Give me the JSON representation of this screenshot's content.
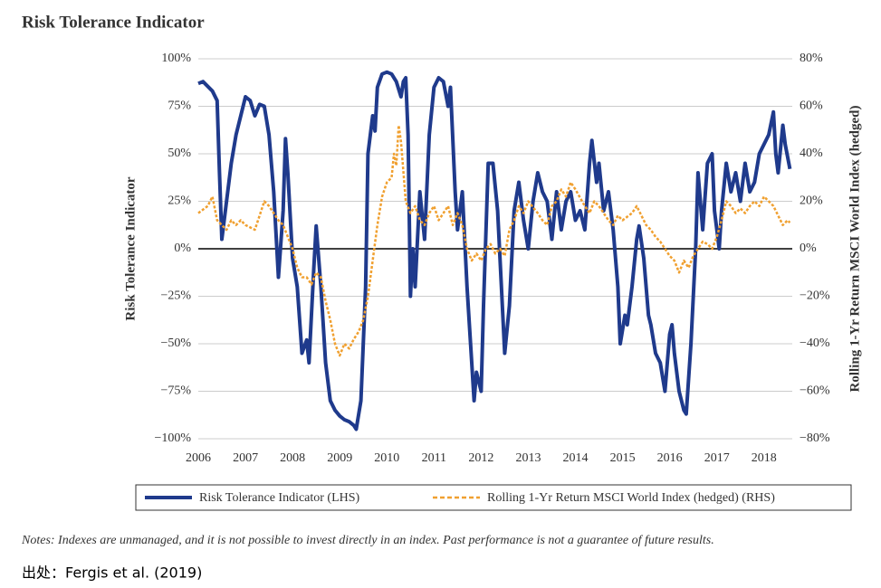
{
  "chart_data": {
    "type": "line",
    "title": "Risk Tolerance Indicator",
    "ylabel": "Risk Tolerance Indicator",
    "y2label": "Rolling 1-Yr Return MSCI World Index (hedged)",
    "notes": "Notes: Indexes are unmanaged, and it is not possible to invest directly in an index. Past performance is not a guarantee of future results.",
    "source": "出处：Fergis et al. (2019)",
    "xlim": [
      2006,
      2018.6
    ],
    "xticks": [
      2006,
      2007,
      2008,
      2009,
      2010,
      2011,
      2012,
      2013,
      2014,
      2015,
      2016,
      2017,
      2018
    ],
    "ylim": [
      -100,
      100
    ],
    "yticks": [
      {
        "value": -100,
        "label": "−100%"
      },
      {
        "value": -75,
        "label": "−75%"
      },
      {
        "value": -50,
        "label": "−50%"
      },
      {
        "value": -25,
        "label": "−25%"
      },
      {
        "value": 0,
        "label": "0%"
      },
      {
        "value": 25,
        "label": "25%"
      },
      {
        "value": 50,
        "label": "50%"
      },
      {
        "value": 75,
        "label": "75%"
      },
      {
        "value": 100,
        "label": "100%"
      }
    ],
    "y2lim": [
      -80,
      80
    ],
    "y2ticks": [
      {
        "value": -80,
        "label": "−80%"
      },
      {
        "value": -60,
        "label": "−60%"
      },
      {
        "value": -40,
        "label": "−40%"
      },
      {
        "value": -20,
        "label": "−20%"
      },
      {
        "value": 0,
        "label": "0%"
      },
      {
        "value": 20,
        "label": "20%"
      },
      {
        "value": 40,
        "label": "40%"
      },
      {
        "value": 60,
        "label": "60%"
      },
      {
        "value": 80,
        "label": "80%"
      }
    ],
    "grid": true,
    "series": [
      {
        "name": "Risk Tolerance Indicator (LHS)",
        "color": "#1f3a8c",
        "axis": "y",
        "x": [
          2006.0,
          2006.1,
          2006.3,
          2006.4,
          2006.45,
          2006.5,
          2006.6,
          2006.7,
          2006.8,
          2006.9,
          2007.0,
          2007.1,
          2007.2,
          2007.3,
          2007.4,
          2007.5,
          2007.6,
          2007.7,
          2007.8,
          2007.85,
          2007.9,
          2008.0,
          2008.1,
          2008.2,
          2008.3,
          2008.35,
          2008.45,
          2008.5,
          2008.6,
          2008.7,
          2008.8,
          2008.9,
          2009.0,
          2009.1,
          2009.2,
          2009.3,
          2009.35,
          2009.45,
          2009.55,
          2009.6,
          2009.7,
          2009.75,
          2009.8,
          2009.9,
          2010.0,
          2010.1,
          2010.2,
          2010.3,
          2010.35,
          2010.4,
          2010.45,
          2010.5,
          2010.55,
          2010.6,
          2010.7,
          2010.8,
          2010.9,
          2011.0,
          2011.1,
          2011.2,
          2011.3,
          2011.35,
          2011.45,
          2011.5,
          2011.6,
          2011.7,
          2011.8,
          2011.85,
          2011.9,
          2012.0,
          2012.05,
          2012.15,
          2012.25,
          2012.35,
          2012.45,
          2012.5,
          2012.6,
          2012.7,
          2012.8,
          2012.9,
          2013.0,
          2013.1,
          2013.2,
          2013.3,
          2013.4,
          2013.5,
          2013.6,
          2013.7,
          2013.8,
          2013.9,
          2014.0,
          2014.1,
          2014.2,
          2014.3,
          2014.35,
          2014.45,
          2014.5,
          2014.6,
          2014.7,
          2014.8,
          2014.9,
          2014.95,
          2015.05,
          2015.1,
          2015.2,
          2015.3,
          2015.35,
          2015.45,
          2015.55,
          2015.6,
          2015.7,
          2015.8,
          2015.9,
          2016.0,
          2016.05,
          2016.1,
          2016.2,
          2016.3,
          2016.35,
          2016.45,
          2016.55,
          2016.6,
          2016.7,
          2016.8,
          2016.9,
          2016.95,
          2017.05,
          2017.1,
          2017.2,
          2017.3,
          2017.4,
          2017.5,
          2017.6,
          2017.7,
          2017.8,
          2017.9,
          2018.0,
          2018.1,
          2018.2,
          2018.25,
          2018.3,
          2018.4,
          2018.45,
          2018.55
        ],
        "values": [
          87,
          88,
          83,
          78,
          40,
          5,
          25,
          45,
          60,
          70,
          80,
          78,
          70,
          76,
          75,
          60,
          30,
          -15,
          20,
          58,
          40,
          -5,
          -20,
          -55,
          -48,
          -60,
          -10,
          12,
          -20,
          -60,
          -80,
          -85,
          -88,
          -90,
          -91,
          -93,
          -95,
          -80,
          -20,
          50,
          70,
          62,
          85,
          92,
          93,
          92,
          88,
          80,
          88,
          90,
          60,
          -25,
          0,
          -20,
          30,
          5,
          60,
          85,
          90,
          88,
          75,
          85,
          30,
          10,
          30,
          -20,
          -60,
          -80,
          -65,
          -75,
          -30,
          45,
          45,
          20,
          -30,
          -55,
          -30,
          20,
          35,
          15,
          0,
          25,
          40,
          30,
          25,
          5,
          30,
          10,
          25,
          30,
          15,
          20,
          10,
          45,
          57,
          35,
          45,
          20,
          30,
          10,
          -20,
          -50,
          -35,
          -40,
          -20,
          5,
          12,
          -5,
          -35,
          -40,
          -55,
          -60,
          -75,
          -45,
          -40,
          -55,
          -75,
          -85,
          -87,
          -50,
          0,
          40,
          10,
          45,
          50,
          20,
          0,
          20,
          45,
          30,
          40,
          25,
          45,
          30,
          35,
          50,
          55,
          60,
          72,
          50,
          40,
          65,
          55,
          42
        ]
      },
      {
        "name": "Rolling 1-Yr Return MSCI World Index (hedged) (RHS)",
        "color": "#f0a030",
        "axis": "y2",
        "x": [
          2006.0,
          2006.2,
          2006.3,
          2006.4,
          2006.5,
          2006.6,
          2006.7,
          2006.8,
          2006.9,
          2007.0,
          2007.2,
          2007.3,
          2007.4,
          2007.5,
          2007.6,
          2007.7,
          2007.8,
          2007.9,
          2008.0,
          2008.1,
          2008.2,
          2008.3,
          2008.4,
          2008.5,
          2008.6,
          2008.7,
          2008.8,
          2008.9,
          2009.0,
          2009.1,
          2009.2,
          2009.3,
          2009.4,
          2009.5,
          2009.6,
          2009.7,
          2009.8,
          2009.9,
          2010.0,
          2010.1,
          2010.15,
          2010.2,
          2010.25,
          2010.3,
          2010.4,
          2010.5,
          2010.6,
          2010.7,
          2010.8,
          2010.9,
          2011.0,
          2011.1,
          2011.2,
          2011.3,
          2011.4,
          2011.5,
          2011.6,
          2011.7,
          2011.8,
          2011.9,
          2012.0,
          2012.1,
          2012.2,
          2012.3,
          2012.4,
          2012.5,
          2012.6,
          2012.7,
          2012.8,
          2012.9,
          2013.0,
          2013.2,
          2013.3,
          2013.4,
          2013.5,
          2013.6,
          2013.7,
          2013.8,
          2013.9,
          2014.0,
          2014.2,
          2014.3,
          2014.4,
          2014.5,
          2014.6,
          2014.7,
          2014.8,
          2014.9,
          2015.0,
          2015.2,
          2015.3,
          2015.4,
          2015.5,
          2015.6,
          2015.7,
          2015.8,
          2015.9,
          2016.0,
          2016.1,
          2016.2,
          2016.3,
          2016.4,
          2016.5,
          2016.6,
          2016.7,
          2016.8,
          2016.9,
          2017.0,
          2017.1,
          2017.2,
          2017.3,
          2017.4,
          2017.5,
          2017.6,
          2017.7,
          2017.8,
          2017.9,
          2018.0,
          2018.1,
          2018.2,
          2018.3,
          2018.4,
          2018.5,
          2018.55
        ],
        "values": [
          15,
          18,
          22,
          12,
          10,
          8,
          12,
          10,
          12,
          10,
          8,
          14,
          20,
          18,
          15,
          12,
          10,
          5,
          0,
          -8,
          -12,
          -12,
          -15,
          -10,
          -12,
          -22,
          -30,
          -40,
          -45,
          -40,
          -42,
          -38,
          -35,
          -30,
          -20,
          -5,
          10,
          22,
          28,
          30,
          40,
          35,
          52,
          45,
          20,
          15,
          18,
          12,
          10,
          15,
          18,
          12,
          15,
          18,
          10,
          15,
          10,
          0,
          -5,
          -2,
          -5,
          0,
          2,
          -2,
          0,
          -3,
          8,
          12,
          18,
          15,
          20,
          15,
          12,
          10,
          18,
          20,
          25,
          22,
          28,
          25,
          18,
          15,
          20,
          18,
          15,
          12,
          10,
          14,
          12,
          15,
          18,
          14,
          10,
          8,
          5,
          3,
          0,
          -3,
          -5,
          -10,
          -5,
          -8,
          -3,
          0,
          3,
          2,
          0,
          5,
          12,
          20,
          18,
          15,
          17,
          15,
          18,
          20,
          18,
          22,
          20,
          18,
          14,
          10,
          12,
          11
        ]
      }
    ]
  }
}
